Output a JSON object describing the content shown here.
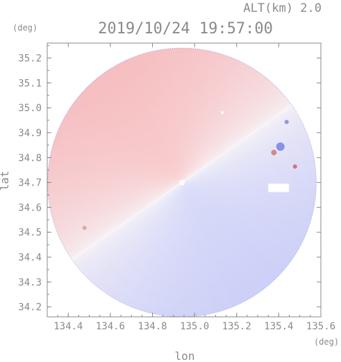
{
  "header": {
    "altitude_label": "ALT(km) 2.0",
    "timestamp": "2019/10/24 19:57:00"
  },
  "chart_data": {
    "type": "heatmap",
    "title": "2019/10/24 19:57:00",
    "subtitle": "ALT(km) 2.0",
    "xlabel": "lon",
    "ylabel": "lat",
    "x_unit": "(deg)",
    "y_unit": "(deg)",
    "xlim": [
      134.3,
      135.6
    ],
    "ylim": [
      34.16,
      35.26
    ],
    "x_ticks": [
      134.4,
      134.6,
      134.8,
      135.0,
      135.2,
      135.4,
      135.6
    ],
    "y_ticks": [
      34.2,
      34.3,
      34.4,
      34.5,
      34.6,
      34.7,
      34.8,
      34.9,
      35.0,
      35.1,
      35.2
    ],
    "x_tick_labels": [
      "134.4",
      "134.6",
      "134.8",
      "135.0",
      "135.2",
      "135.4",
      "135.6"
    ],
    "y_tick_labels": [
      "34.2",
      "34.3",
      "34.4",
      "34.5",
      "34.6",
      "34.7",
      "34.8",
      "34.9",
      "35.0",
      "35.1",
      "35.2"
    ],
    "radar_center": {
      "lon": 134.94,
      "lat": 34.7
    },
    "radar_radius_deg_lat": 0.54,
    "grid": false,
    "field": "doppler radial velocity",
    "colors": {
      "away": "#f6c6c6",
      "toward": "#cfd2f6",
      "zero": "#f4f0f4",
      "axis": "#888888",
      "text": "#8a8a8a"
    }
  }
}
